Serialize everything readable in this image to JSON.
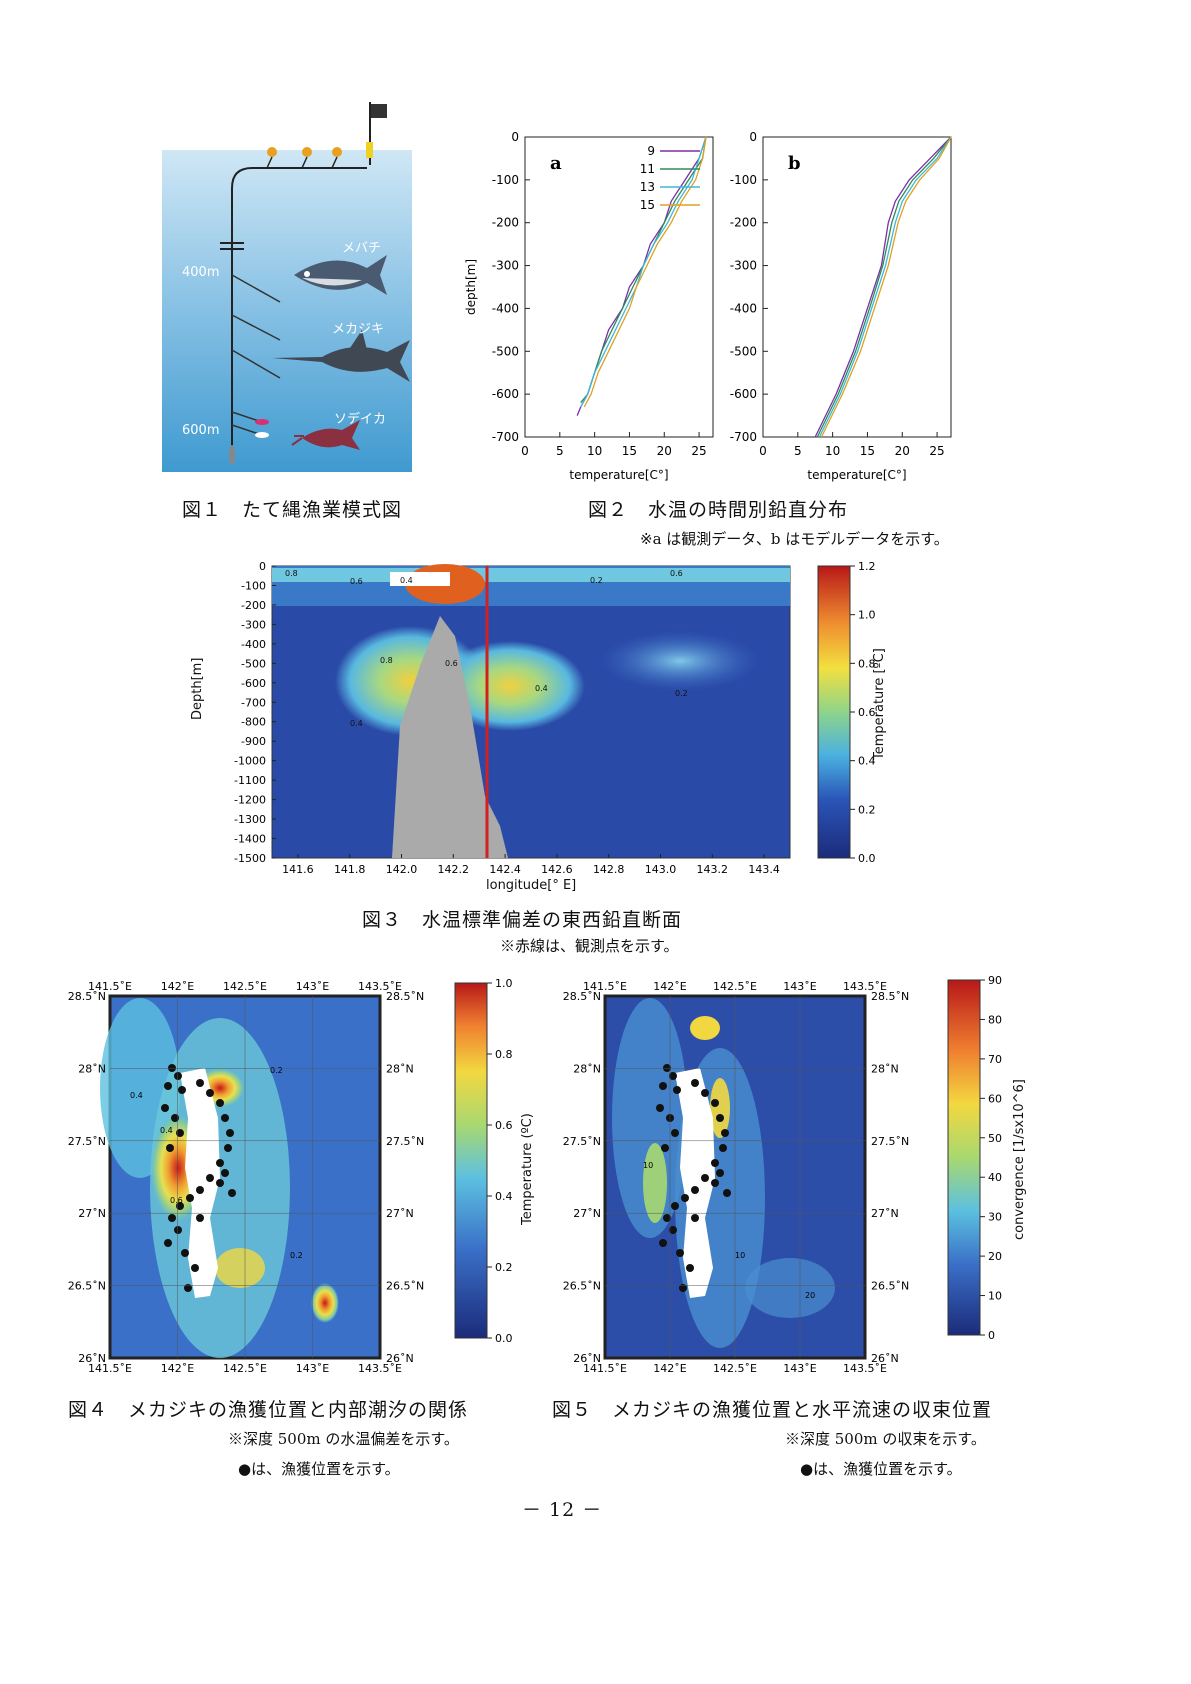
{
  "fig1": {
    "caption": "図１　たて縄漁業模式図",
    "depth_top": "400m",
    "depth_bottom": "600m",
    "fish_labels": [
      "メバチ",
      "メカジキ",
      "ソデイカ"
    ]
  },
  "fig2": {
    "caption": "図２　水温の時間別鉛直分布",
    "note": "※a は観測データ、b はモデルデータを示す。",
    "panel_a_label": "a",
    "panel_b_label": "b",
    "legend": [
      "9",
      "11",
      "13",
      "15"
    ],
    "xlabel": "temperature[C°]",
    "ylabel": "depth[m]",
    "x_ticks": [
      "0",
      "5",
      "10",
      "15",
      "20",
      "25"
    ],
    "y_ticks": [
      "0",
      "-100",
      "-200",
      "-300",
      "-400",
      "-500",
      "-600",
      "-700"
    ]
  },
  "fig3": {
    "caption": "図３　水温標準偏差の東西鉛直断面",
    "note": "※赤線は、観測点を示す。",
    "xlabel": "longitude[° E]",
    "ylabel": "Depth[m]",
    "x_ticks": [
      "141.6",
      "141.8",
      "142.0",
      "142.2",
      "142.4",
      "142.6",
      "142.8",
      "143.0",
      "143.2",
      "143.4"
    ],
    "y_ticks": [
      "0",
      "-100",
      "-200",
      "-300",
      "-400",
      "-500",
      "-600",
      "-700",
      "-800",
      "-900",
      "-1000",
      "-1100",
      "-1200",
      "-1300",
      "-1400",
      "-1500"
    ],
    "colorbar_label": "Temperature [ºC]",
    "colorbar_ticks": [
      "1.2",
      "1.0",
      "0.8",
      "0.6",
      "0.4",
      "0.2",
      "0.0"
    ]
  },
  "fig4": {
    "caption": "図４　メカジキの漁獲位置と内部潮汐の関係",
    "note1": "※深度 500m の水温偏差を示す。",
    "note2": "●は、漁獲位置を示す。",
    "lon_ticks": [
      "141.5˚E",
      "142˚E",
      "142.5˚E",
      "143˚E",
      "143.5˚E"
    ],
    "lat_ticks": [
      "28.5˚N",
      "28˚N",
      "27.5˚N",
      "27˚N",
      "26.5˚N",
      "26˚N"
    ],
    "colorbar_label": "Temperature (ºC)",
    "colorbar_ticks": [
      "1.0",
      "0.8",
      "0.6",
      "0.4",
      "0.2",
      "0.0"
    ]
  },
  "fig5": {
    "caption": "図５　メカジキの漁獲位置と水平流速の収束位置",
    "note1": "※深度 500m の収束を示す。",
    "note2": "●は、漁獲位置を示す。",
    "lon_ticks": [
      "141.5˚E",
      "142˚E",
      "142.5˚E",
      "143˚E",
      "143.5˚E"
    ],
    "lat_ticks": [
      "28.5˚N",
      "28˚N",
      "27.5˚N",
      "27˚N",
      "26.5˚N",
      "26˚N"
    ],
    "colorbar_label": "convergence [1/sx10^6]",
    "colorbar_ticks": [
      "90",
      "80",
      "70",
      "60",
      "50",
      "40",
      "30",
      "20",
      "10",
      "0"
    ]
  },
  "page_number": "－ 12 －",
  "chart_data": [
    {
      "type": "line",
      "panel": "a",
      "xlabel": "temperature[C°]",
      "ylabel": "depth[m]",
      "xlim": [
        0,
        27
      ],
      "ylim": [
        -700,
        0
      ],
      "series": [
        {
          "name": "9",
          "color": "#7b2fa8",
          "points": [
            [
              26,
              0
            ],
            [
              25,
              -50
            ],
            [
              23,
              -100
            ],
            [
              21,
              -150
            ],
            [
              20,
              -200
            ],
            [
              18,
              -250
            ],
            [
              17,
              -300
            ],
            [
              15,
              -350
            ],
            [
              14,
              -400
            ],
            [
              12,
              -450
            ],
            [
              11,
              -500
            ],
            [
              10,
              -550
            ],
            [
              9,
              -600
            ],
            [
              8,
              -630
            ],
            [
              7.5,
              -650
            ]
          ]
        },
        {
          "name": "11",
          "color": "#2e8b57",
          "points": [
            [
              26,
              0
            ],
            [
              25.5,
              -50
            ],
            [
              23.5,
              -100
            ],
            [
              21.5,
              -150
            ],
            [
              20,
              -200
            ],
            [
              18.5,
              -250
            ],
            [
              17,
              -300
            ],
            [
              15.5,
              -350
            ],
            [
              14,
              -400
            ],
            [
              12.5,
              -450
            ],
            [
              11,
              -500
            ],
            [
              10,
              -550
            ],
            [
              9,
              -600
            ],
            [
              8,
              -620
            ]
          ]
        },
        {
          "name": "13",
          "color": "#3cb8d8",
          "points": [
            [
              26,
              0
            ],
            [
              25,
              -50
            ],
            [
              24,
              -100
            ],
            [
              22,
              -150
            ],
            [
              20.5,
              -200
            ],
            [
              18.5,
              -250
            ],
            [
              17,
              -300
            ],
            [
              16,
              -350
            ],
            [
              14.5,
              -400
            ],
            [
              13,
              -450
            ],
            [
              11.5,
              -500
            ],
            [
              10,
              -550
            ],
            [
              9,
              -600
            ],
            [
              8,
              -630
            ]
          ]
        },
        {
          "name": "15",
          "color": "#e0a020",
          "points": [
            [
              26,
              0
            ],
            [
              25.5,
              -50
            ],
            [
              24.5,
              -100
            ],
            [
              22.5,
              -150
            ],
            [
              21,
              -200
            ],
            [
              19,
              -250
            ],
            [
              17.5,
              -300
            ],
            [
              16,
              -350
            ],
            [
              15,
              -400
            ],
            [
              13.5,
              -450
            ],
            [
              12,
              -500
            ],
            [
              10.5,
              -550
            ],
            [
              9.5,
              -600
            ],
            [
              8.5,
              -630
            ]
          ]
        }
      ]
    },
    {
      "type": "line",
      "panel": "b",
      "xlabel": "temperature[C°]",
      "ylabel": "",
      "xlim": [
        0,
        27
      ],
      "ylim": [
        -700,
        0
      ],
      "series": [
        {
          "color": "#7b2fa8",
          "points": [
            [
              27,
              0
            ],
            [
              24,
              -50
            ],
            [
              21,
              -100
            ],
            [
              19,
              -150
            ],
            [
              18,
              -200
            ],
            [
              17,
              -300
            ],
            [
              15,
              -400
            ],
            [
              13,
              -500
            ],
            [
              10.5,
              -600
            ],
            [
              7.5,
              -700
            ]
          ]
        },
        {
          "color": "#2e8b57",
          "points": [
            [
              27,
              0
            ],
            [
              24.5,
              -50
            ],
            [
              21.5,
              -100
            ],
            [
              19.5,
              -150
            ],
            [
              18.5,
              -200
            ],
            [
              17.2,
              -300
            ],
            [
              15.3,
              -400
            ],
            [
              13.3,
              -500
            ],
            [
              10.8,
              -600
            ],
            [
              7.8,
              -700
            ]
          ]
        },
        {
          "color": "#3cb8d8",
          "points": [
            [
              27,
              0
            ],
            [
              25,
              -50
            ],
            [
              22,
              -100
            ],
            [
              20,
              -150
            ],
            [
              19,
              -200
            ],
            [
              17.6,
              -300
            ],
            [
              15.6,
              -400
            ],
            [
              13.6,
              -500
            ],
            [
              11.1,
              -600
            ],
            [
              8.1,
              -700
            ]
          ]
        },
        {
          "color": "#e0a020",
          "points": [
            [
              27,
              0
            ],
            [
              25.3,
              -50
            ],
            [
              22.5,
              -100
            ],
            [
              20.5,
              -150
            ],
            [
              19.4,
              -200
            ],
            [
              18,
              -300
            ],
            [
              16,
              -400
            ],
            [
              14,
              -500
            ],
            [
              11.4,
              -600
            ],
            [
              8.4,
              -700
            ]
          ]
        }
      ]
    },
    {
      "type": "heatmap",
      "panel": "fig3",
      "xlabel": "longitude[° E]",
      "ylabel": "Depth[m]",
      "xlim": [
        141.5,
        143.5
      ],
      "ylim": [
        -1500,
        0
      ],
      "colorbar": [
        0.0,
        1.2
      ],
      "observation_line_lon": 142.33,
      "contour_labels": [
        "0.8",
        "0.6",
        "0.4",
        "0.2",
        "0.6",
        "0.8",
        "0.6",
        "0.4",
        "0.2",
        "0.4"
      ]
    },
    {
      "type": "heatmap",
      "panel": "fig4",
      "xlim": [
        141.5,
        143.5
      ],
      "ylim": [
        26,
        28.5
      ],
      "colorbar": [
        0.0,
        1.0
      ],
      "contour_labels": [
        "0.4",
        "0.2",
        "0.4",
        "0.6",
        "0.2"
      ]
    },
    {
      "type": "heatmap",
      "panel": "fig5",
      "xlim": [
        141.5,
        143.5
      ],
      "ylim": [
        26,
        28.5
      ],
      "colorbar": [
        0,
        90
      ],
      "contour_labels": [
        "10",
        "10",
        "20"
      ]
    }
  ]
}
